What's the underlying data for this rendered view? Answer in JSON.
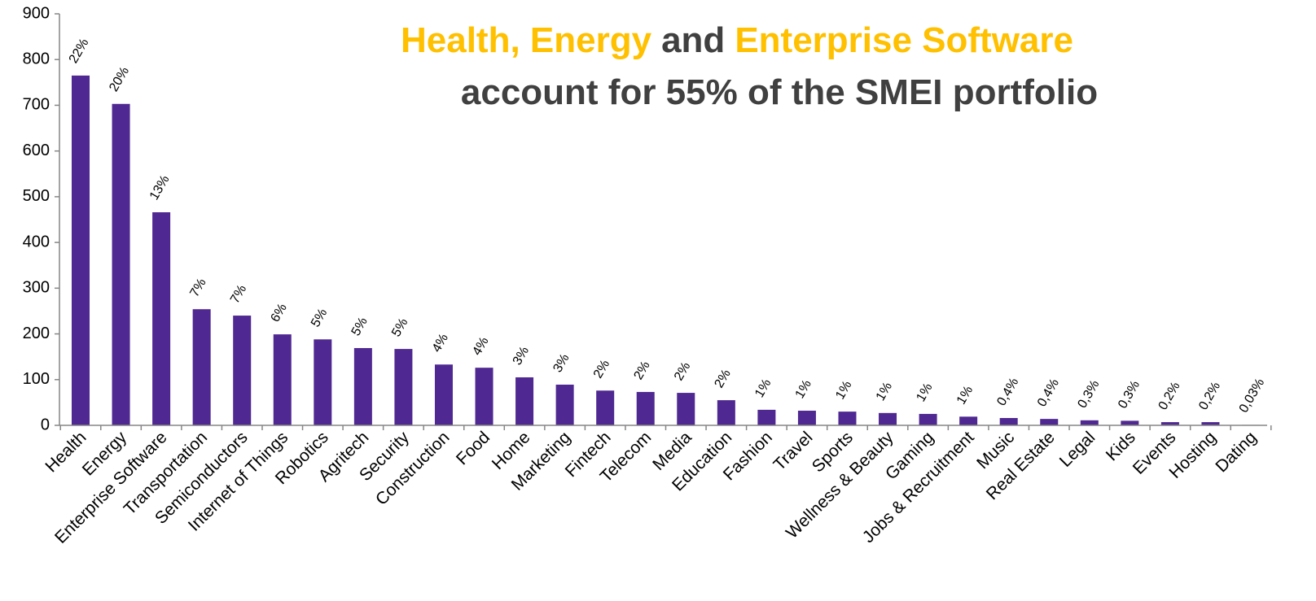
{
  "chart_data": {
    "type": "bar",
    "title": [
      "Health, Energy",
      "and",
      "Enterprise Software"
    ],
    "title_colors": [
      "#ffc000",
      "#404040",
      "#ffc000"
    ],
    "subtitle": "account for 55% of the SMEI portfolio",
    "categories": [
      "Health",
      "Energy",
      "Enterprise Software",
      "Transportation",
      "Semiconductors",
      "Internet of Things",
      "Robotics",
      "Agritech",
      "Security",
      "Construction",
      "Food",
      "Home",
      "Marketing",
      "Fintech",
      "Telecom",
      "Media",
      "Education",
      "Fashion",
      "Travel",
      "Sports",
      "Wellness & Beauty",
      "Gaming",
      "Jobs & Recruitment",
      "Music",
      "Real Estate",
      "Legal",
      "Kids",
      "Events",
      "Hosting",
      "Dating"
    ],
    "values": [
      765,
      703,
      466,
      254,
      240,
      199,
      188,
      169,
      167,
      133,
      126,
      105,
      89,
      76,
      73,
      71,
      55,
      34,
      32,
      30,
      27,
      25,
      19,
      16,
      14,
      11,
      10,
      7,
      7,
      1
    ],
    "share_labels": [
      "22%",
      "20%",
      "13%",
      "7%",
      "7%",
      "6%",
      "5%",
      "5%",
      "5%",
      "4%",
      "4%",
      "3%",
      "3%",
      "2%",
      "2%",
      "2%",
      "2%",
      "1%",
      "1%",
      "1%",
      "1%",
      "1%",
      "1%",
      "0,4%",
      "0,4%",
      "0,3%",
      "0,3%",
      "0,2%",
      "0,2%",
      "0,03%"
    ],
    "color": "#4f2891",
    "ylim": [
      0,
      900
    ],
    "yticks": [
      0,
      100,
      200,
      300,
      400,
      500,
      600,
      700,
      800,
      900
    ]
  }
}
